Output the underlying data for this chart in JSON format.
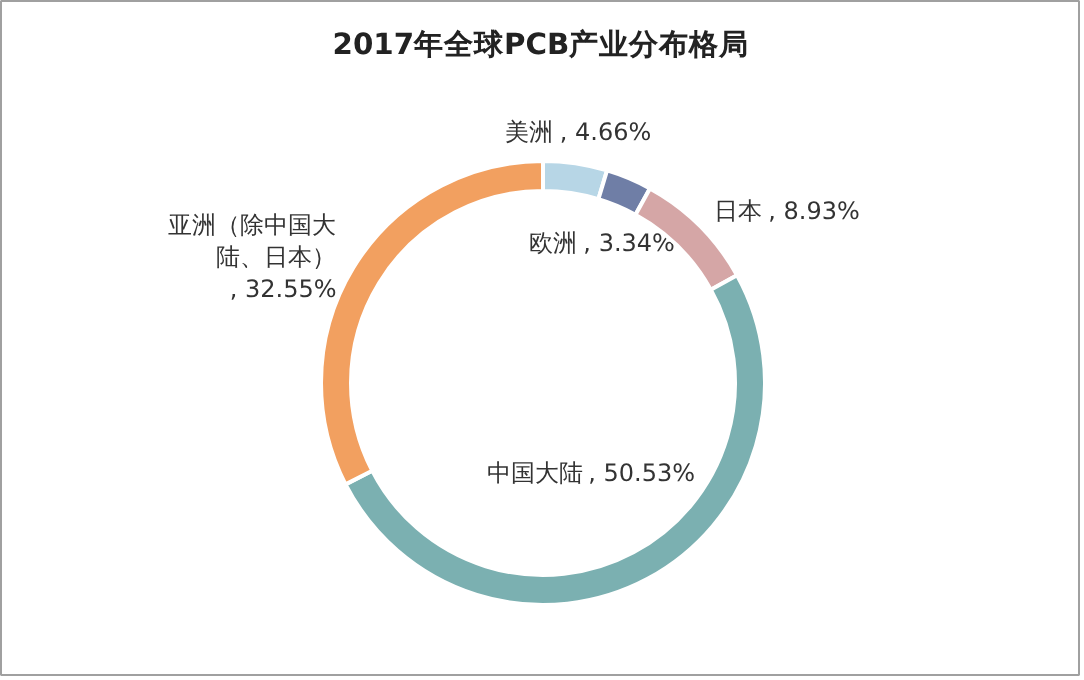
{
  "chart_data": {
    "type": "donut",
    "title": "2017年全球PCB产业分布格局",
    "categories": [
      "美洲",
      "欧洲",
      "日本",
      "中国大陆",
      "亚洲（除中国大陆、日本）"
    ],
    "values": [
      4.66,
      3.34,
      8.93,
      50.53,
      32.55
    ],
    "value_labels": [
      ", 4.66%",
      ", 3.34%",
      ", 8.93%",
      ", 50.53%",
      ", 32.55%"
    ],
    "colors": [
      "#b7d6e6",
      "#6f7ea6",
      "#d5a6a6",
      "#7bb0b1",
      "#f2a060"
    ],
    "data_labels": true
  }
}
